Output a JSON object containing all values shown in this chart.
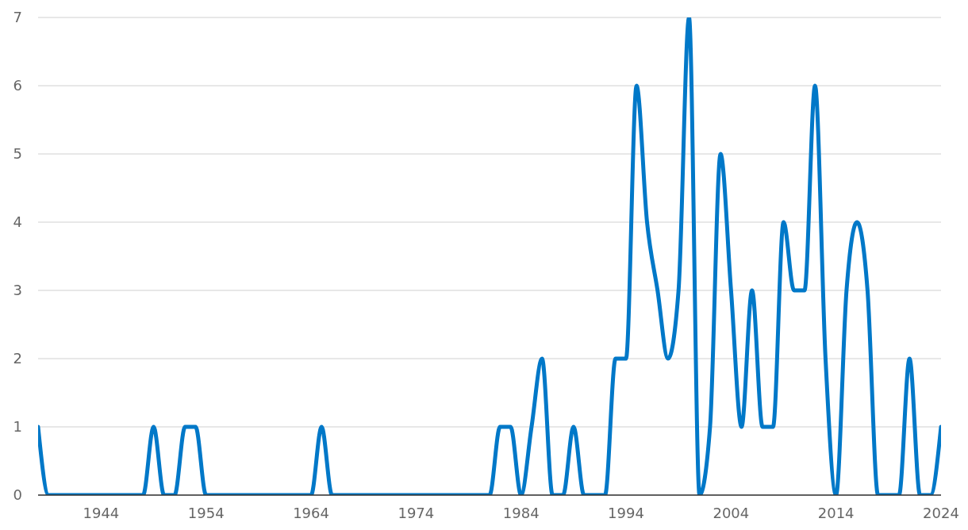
{
  "chart_data": {
    "type": "line",
    "x": [
      1938,
      1939,
      1940,
      1941,
      1942,
      1943,
      1944,
      1945,
      1946,
      1947,
      1948,
      1949,
      1950,
      1951,
      1952,
      1953,
      1954,
      1955,
      1956,
      1957,
      1958,
      1959,
      1960,
      1961,
      1962,
      1963,
      1964,
      1965,
      1966,
      1967,
      1968,
      1969,
      1970,
      1971,
      1972,
      1973,
      1974,
      1975,
      1976,
      1977,
      1978,
      1979,
      1980,
      1981,
      1982,
      1983,
      1984,
      1985,
      1986,
      1987,
      1988,
      1989,
      1990,
      1991,
      1992,
      1993,
      1994,
      1995,
      1996,
      1997,
      1998,
      1999,
      2000,
      2001,
      2002,
      2003,
      2004,
      2005,
      2006,
      2007,
      2008,
      2009,
      2010,
      2011,
      2012,
      2013,
      2014,
      2015,
      2016,
      2017,
      2018,
      2019,
      2020,
      2021,
      2022,
      2023,
      2024
    ],
    "series": [
      {
        "color": "#0078c8",
        "values": [
          1,
          0,
          0,
          0,
          0,
          0,
          0,
          0,
          0,
          0,
          0,
          1,
          0,
          0,
          1,
          1,
          0,
          0,
          0,
          0,
          0,
          0,
          0,
          0,
          0,
          0,
          0,
          1,
          0,
          0,
          0,
          0,
          0,
          0,
          0,
          0,
          0,
          0,
          0,
          0,
          0,
          0,
          0,
          0,
          1,
          1,
          0,
          1,
          2,
          0,
          0,
          1,
          0,
          0,
          0,
          2,
          2,
          6,
          4,
          3,
          2,
          3,
          7,
          0,
          1,
          5,
          3,
          1,
          3,
          1,
          1,
          4,
          3,
          3,
          6,
          2,
          0,
          3,
          4,
          3,
          0,
          0,
          0,
          2,
          0,
          0,
          1
        ]
      }
    ],
    "xlim": [
      1938,
      2024
    ],
    "xticks": [
      1944,
      1954,
      1964,
      1974,
      1984,
      1994,
      2004,
      2014,
      2024
    ],
    "ylim": [
      0,
      7
    ],
    "yticks": [
      0,
      1,
      2,
      3,
      4,
      5,
      6,
      7
    ],
    "grid": "y",
    "marker": "none",
    "line_style": "solid"
  }
}
